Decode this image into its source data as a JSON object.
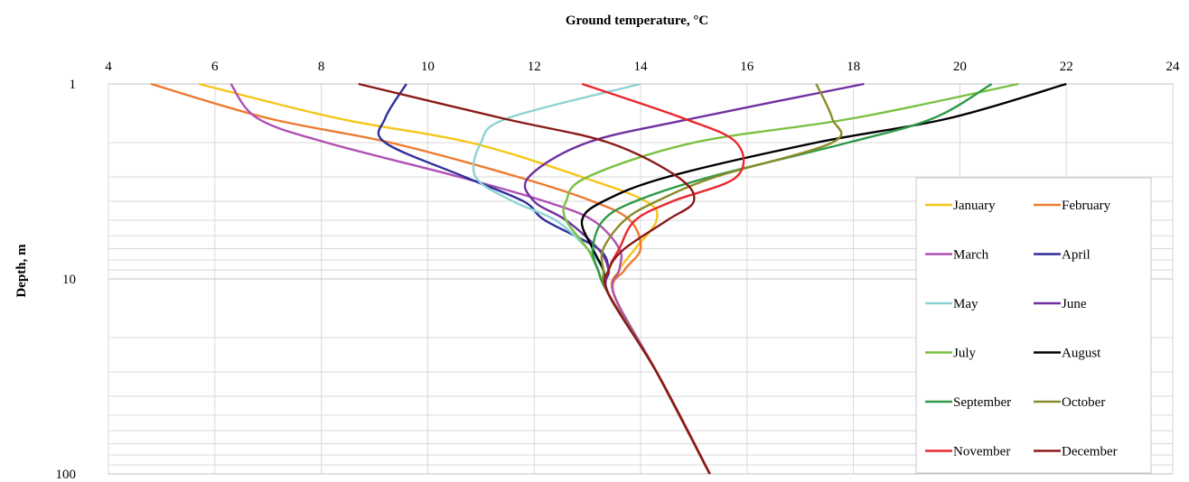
{
  "chart_data": {
    "type": "line",
    "title": "Ground  temperature, °C",
    "xlabel": "Ground  temperature, °C",
    "ylabel": "Depth, m",
    "x_axis_position": "top",
    "y_scale": "log",
    "y_reversed": true,
    "xlim": [
      4,
      24
    ],
    "ylim": [
      1,
      100
    ],
    "x_ticks": [
      4,
      6,
      8,
      10,
      12,
      14,
      16,
      18,
      20,
      22,
      24
    ],
    "y_ticks": [
      1,
      10,
      100
    ],
    "grid": true,
    "legend": {
      "placement": "right",
      "columns": 2
    },
    "series": [
      {
        "name": "January",
        "color": "#F5C518",
        "x": [
          5.7,
          8.3,
          10.8,
          12.9,
          14.1,
          14.3,
          13.9,
          13.6,
          13.5,
          14.3,
          15.3
        ],
        "y": [
          1,
          1.5,
          2,
          3,
          4,
          5,
          7,
          9,
          12,
          30,
          100
        ]
      },
      {
        "name": "February",
        "color": "#EE7A30",
        "x": [
          4.8,
          7.0,
          9.3,
          11.7,
          13.1,
          13.8,
          14.0,
          13.7,
          13.5,
          14.3,
          15.3
        ],
        "y": [
          1,
          1.5,
          2,
          3,
          4,
          5,
          7,
          9,
          12,
          30,
          100
        ]
      },
      {
        "name": "March",
        "color": "#B04FB4",
        "x": [
          6.3,
          6.8,
          8.1,
          10.6,
          12.2,
          13.1,
          13.6,
          13.6,
          13.5,
          14.3,
          15.3
        ],
        "y": [
          1,
          1.5,
          2,
          3,
          4,
          5,
          7,
          9,
          12,
          30,
          100
        ]
      },
      {
        "name": "April",
        "color": "#2E2E9A",
        "x": [
          9.6,
          9.2,
          9.2,
          10.7,
          11.8,
          12.2,
          13.2,
          13.4,
          13.4,
          14.3,
          15.3
        ],
        "y": [
          1,
          1.5,
          2,
          3,
          4,
          5,
          7,
          9,
          12,
          30,
          100
        ]
      },
      {
        "name": "May",
        "color": "#8DD3D3",
        "x": [
          14.0,
          11.5,
          11.0,
          10.9,
          11.6,
          12.4,
          13.0,
          13.3,
          13.4,
          14.3,
          15.3
        ],
        "y": [
          1,
          1.5,
          2,
          3,
          4,
          5,
          7,
          9,
          12,
          30,
          100
        ]
      },
      {
        "name": "June",
        "color": "#7030A0",
        "x": [
          18.2,
          15.0,
          13.0,
          11.9,
          12.0,
          12.6,
          13.2,
          13.4,
          13.4,
          14.3,
          15.3
        ],
        "y": [
          1,
          1.5,
          2,
          3,
          4,
          5,
          7,
          9,
          12,
          30,
          100
        ]
      },
      {
        "name": "July",
        "color": "#7AC142",
        "x": [
          21.1,
          18.0,
          15.0,
          13.0,
          12.6,
          12.6,
          13.0,
          13.2,
          13.4,
          14.3,
          15.3
        ],
        "y": [
          1,
          1.5,
          2,
          3,
          4,
          5,
          7,
          9,
          12,
          30,
          100
        ]
      },
      {
        "name": "August",
        "color": "#000000",
        "x": [
          22.0,
          19.8,
          17.3,
          14.5,
          13.3,
          12.9,
          13.1,
          13.3,
          13.4,
          14.3,
          15.3
        ],
        "y": [
          1,
          1.5,
          2,
          3,
          4,
          5,
          7,
          9,
          12,
          30,
          100
        ]
      },
      {
        "name": "September",
        "color": "#2E9A46",
        "x": [
          20.6,
          19.5,
          17.9,
          15.3,
          13.9,
          13.3,
          13.1,
          13.2,
          13.4,
          14.3,
          15.3
        ],
        "y": [
          1,
          1.5,
          2,
          3,
          4,
          5,
          7,
          9,
          12,
          30,
          100
        ]
      },
      {
        "name": "October",
        "color": "#8B8B2A",
        "x": [
          17.3,
          17.6,
          17.6,
          15.4,
          14.3,
          13.7,
          13.3,
          13.3,
          13.4,
          14.3,
          15.3
        ],
        "y": [
          1,
          1.5,
          2,
          3,
          4,
          5,
          7,
          9,
          12,
          30,
          100
        ]
      },
      {
        "name": "November",
        "color": "#E8282E",
        "x": [
          12.9,
          14.8,
          15.8,
          15.8,
          14.6,
          13.9,
          13.6,
          13.4,
          13.4,
          14.3,
          15.3
        ],
        "y": [
          1,
          1.5,
          2,
          3,
          4,
          5,
          7,
          9,
          12,
          30,
          100
        ]
      },
      {
        "name": "December",
        "color": "#8B1A1A",
        "x": [
          8.7,
          11.4,
          13.4,
          14.7,
          15.0,
          14.5,
          13.7,
          13.4,
          13.4,
          14.3,
          15.3
        ],
        "y": [
          1,
          1.5,
          2,
          3,
          4,
          5,
          7,
          9,
          12,
          30,
          100
        ]
      }
    ]
  }
}
